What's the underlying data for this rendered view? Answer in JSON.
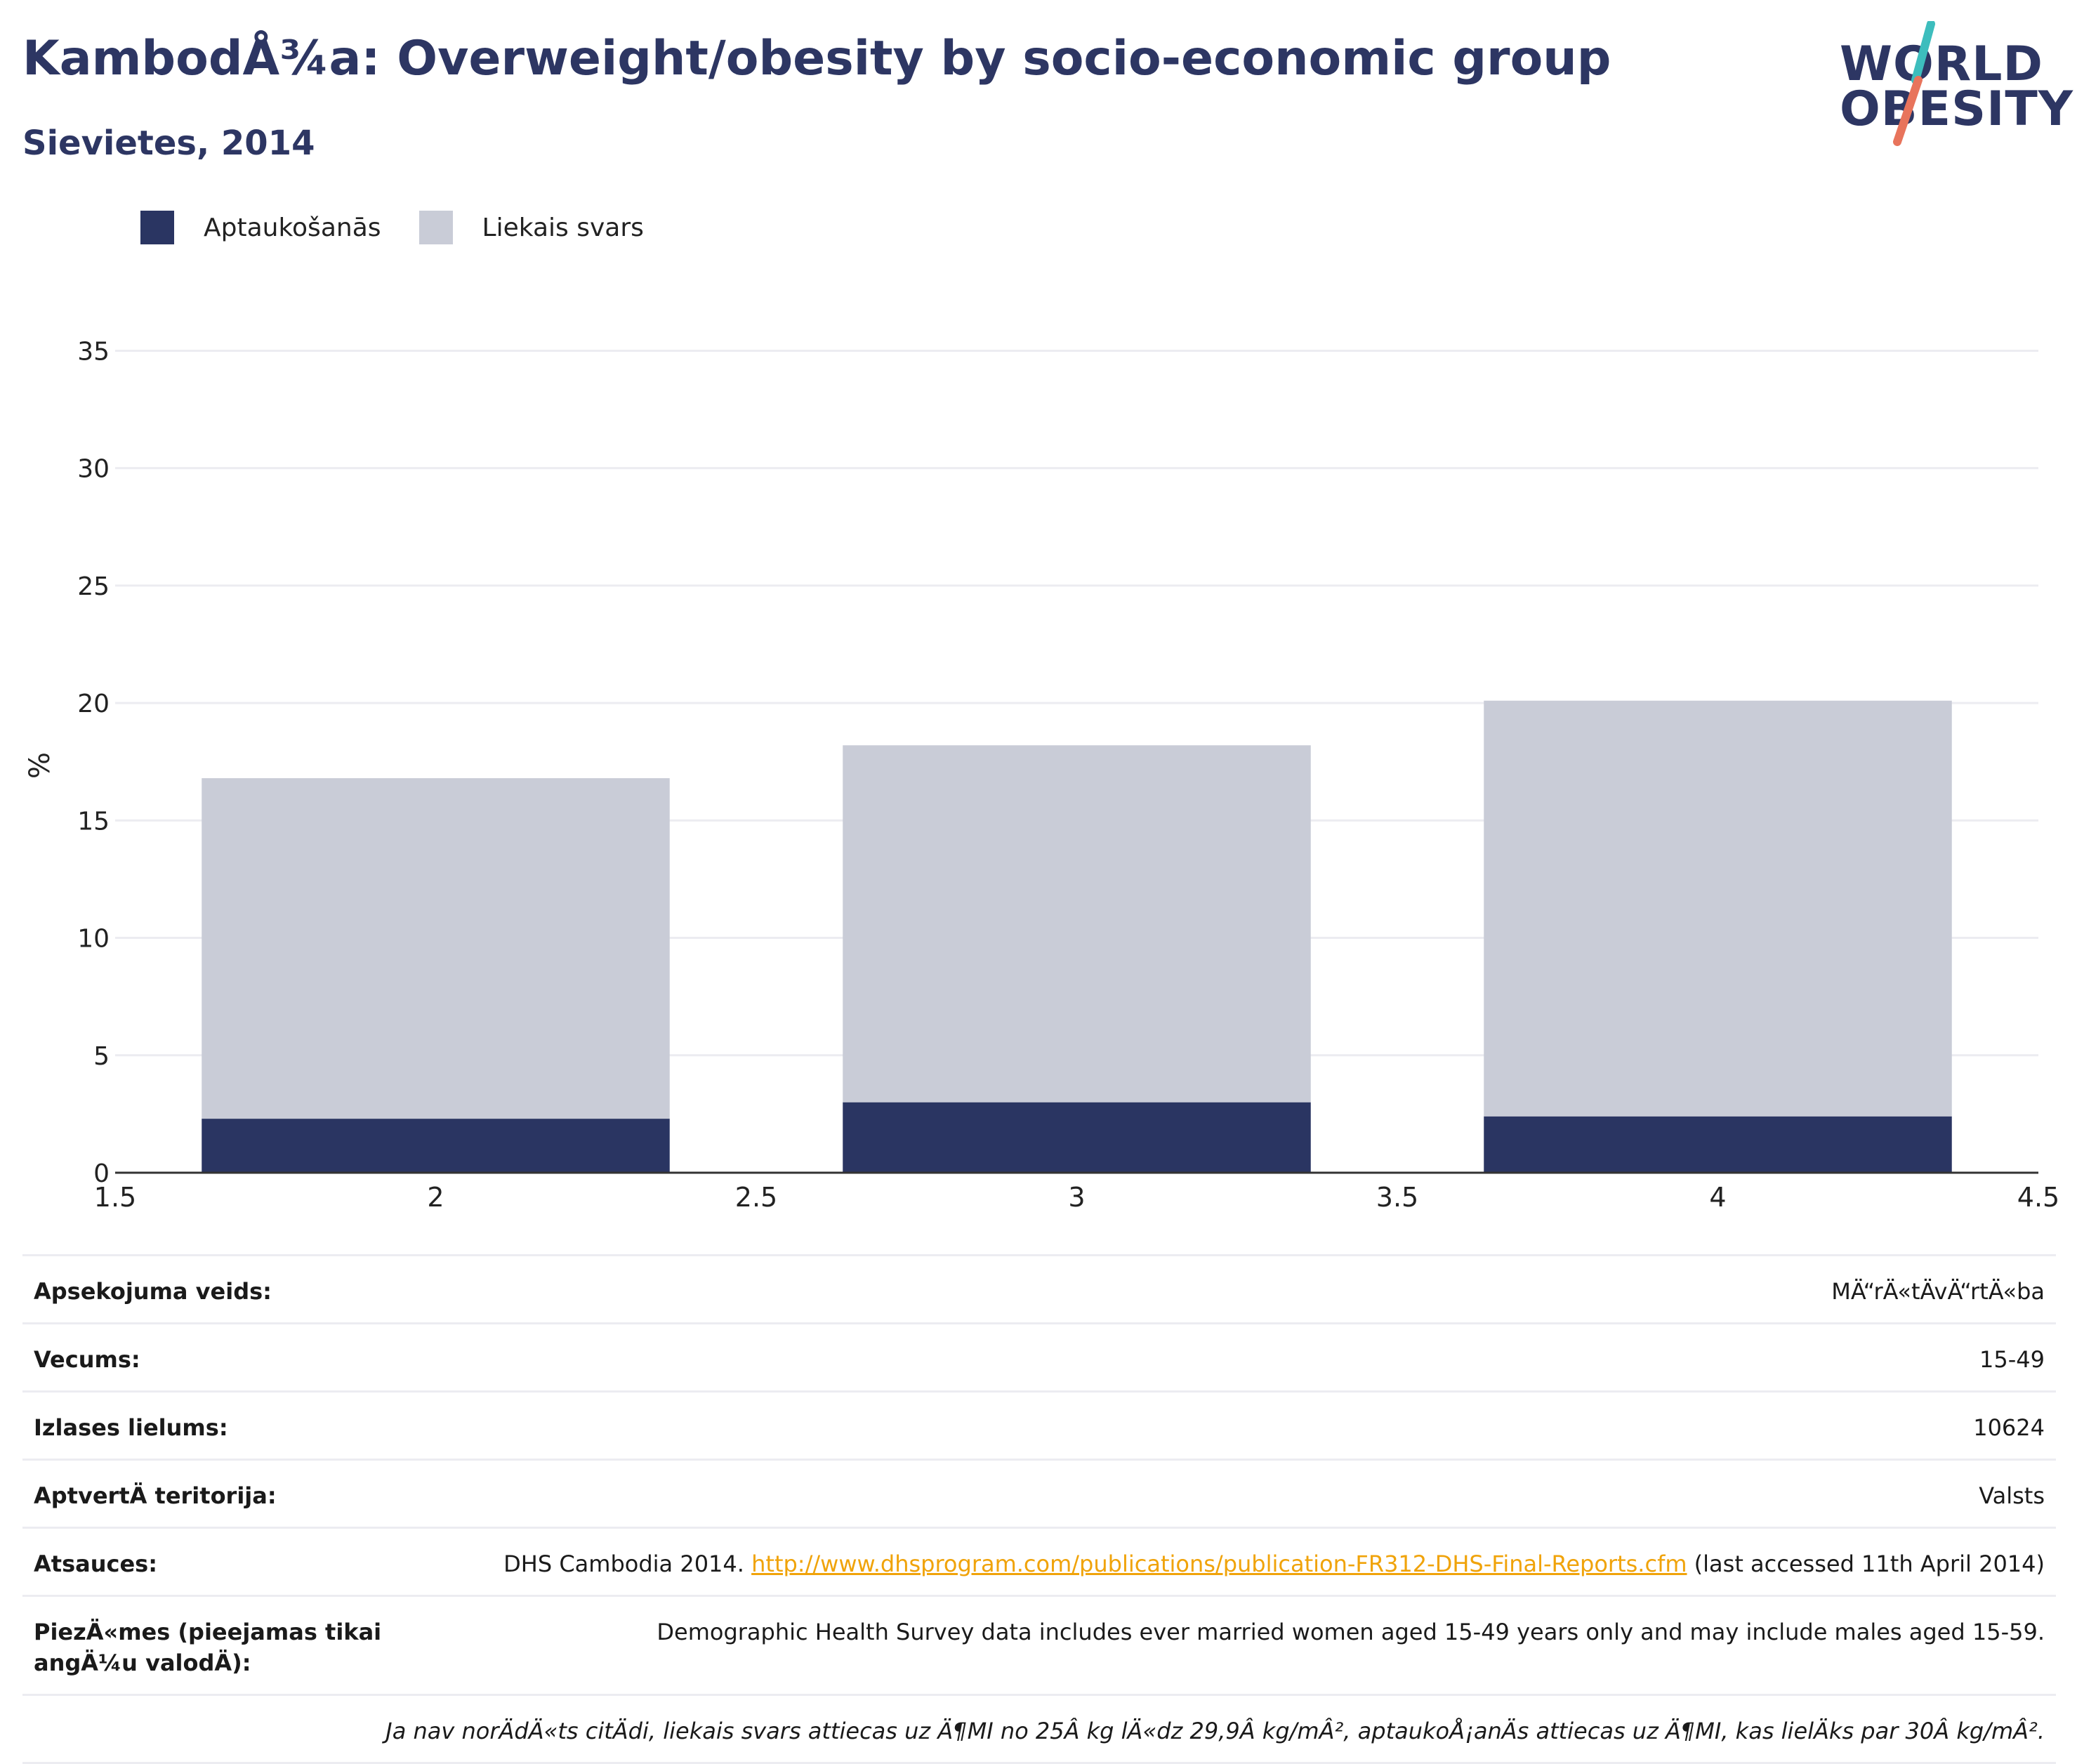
{
  "header": {
    "title": "KambodÅ¾a: Overweight/obesity by socio-economic group",
    "subtitle": "Sievietes, 2014"
  },
  "logo": {
    "line1": "WORLD",
    "line2": "OBESITY",
    "accent_teal": "#3dbdbd",
    "accent_coral": "#e8745c"
  },
  "colors": {
    "obesity": "#2a3562",
    "overweight": "#c9ccd7",
    "grid": "#ececf1",
    "axis": "#333333",
    "link": "#f0a30a"
  },
  "chart_data": {
    "type": "bar",
    "stacked": true,
    "title": "KambodÅ¾a: Overweight/obesity by socio-economic group",
    "subtitle": "Sievietes, 2014",
    "ylabel": "%",
    "xlabel": "",
    "xlim": [
      1.5,
      4.5
    ],
    "ylim": [
      0,
      36
    ],
    "x_ticks": [
      1.5,
      2,
      2.5,
      3,
      3.5,
      4,
      4.5
    ],
    "y_ticks": [
      0,
      5,
      10,
      15,
      20,
      25,
      30,
      35
    ],
    "x": [
      2,
      3,
      4
    ],
    "bar_width": 0.73,
    "grid": true,
    "legend_position": "top-left",
    "series": [
      {
        "name": "Aptaukošanās",
        "values": [
          2.3,
          3.0,
          2.4
        ]
      },
      {
        "name": "Liekais svars",
        "values": [
          14.5,
          15.2,
          17.7
        ]
      }
    ]
  },
  "details": {
    "rows": [
      {
        "label": "Apsekojuma veids:",
        "value": "MÄ“rÄ«tÄvÄ“rtÄ«ba"
      },
      {
        "label": "Vecums:",
        "value": "15-49"
      },
      {
        "label": "Izlases lielums:",
        "value": "10624"
      },
      {
        "label": "AptvertÄ teritorija:",
        "value": "Valsts"
      }
    ],
    "reference": {
      "label": "Atsauces:",
      "prefix": "DHS Cambodia 2014. ",
      "link": "http://www.dhsprogram.com/publications/publication-FR312-DHS-Final-Reports.cfm",
      "suffix": " (last accessed 11th April 2014)"
    },
    "notes": {
      "label": "PiezÄ«mes (pieejamas tikai angÄ¼u valodÄ):",
      "value": "Demographic Health Survey data includes ever married women aged 15-49 years only and may include males aged 15-59."
    },
    "footnote": "Ja nav norÄdÄ«ts citÄdi, liekais svars attiecas uz Ä¶MI no 25Â kg lÄ«dz 29,9Â kg/mÂ², aptaukoÅ¡anÄs attiecas uz Ä¶MI, kas lielÄks par 30Â kg/mÂ²."
  }
}
